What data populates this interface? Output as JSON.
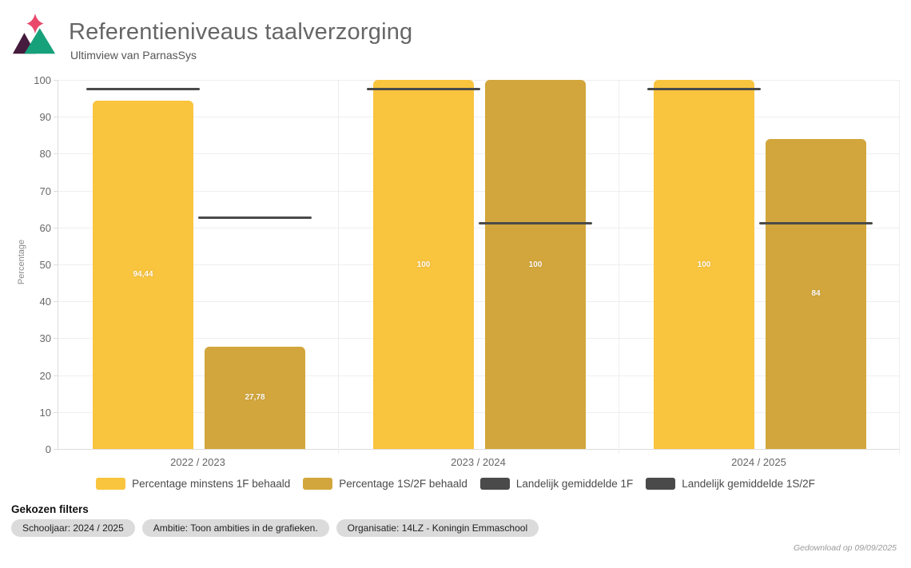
{
  "header": {
    "title": "Referentieniveaus taalverzorging",
    "subtitle": "Ultimview van ParnasSys"
  },
  "logo": {
    "star_color": "#E9486B",
    "left_triangle_color": "#451C3D",
    "right_triangle_color": "#17A17B"
  },
  "chart_data": {
    "type": "bar",
    "title": "Referentieniveaus taalverzorging",
    "xlabel": "",
    "ylabel": "Percentage",
    "ylim": [
      0,
      100
    ],
    "ytick_step": 10,
    "grid": true,
    "legend_position": "bottom",
    "categories": [
      "2022 / 2023",
      "2023 / 2024",
      "2024 / 2025"
    ],
    "series": [
      {
        "name": "Percentage minstens 1F behaald",
        "color": "#F9C43E",
        "values": [
          94.44,
          100,
          100
        ],
        "labels": [
          "94,44",
          "100",
          "100"
        ]
      },
      {
        "name": "Percentage 1S/2F behaald",
        "color": "#D2A63C",
        "values": [
          27.78,
          100,
          84
        ],
        "labels": [
          "27,78",
          "100",
          "84"
        ]
      }
    ],
    "reference_lines": [
      {
        "name": "Landelijk gemiddelde 1F",
        "color": "#4A4A4A",
        "over_series": 0,
        "values": [
          97.4,
          97.5,
          97.5
        ]
      },
      {
        "name": "Landelijk gemiddelde 1S/2F",
        "color": "#4A4A4A",
        "over_series": 1,
        "values": [
          62.5,
          61.0,
          61.0
        ]
      }
    ]
  },
  "legend": [
    {
      "label": "Percentage minstens 1F behaald",
      "color": "#F9C43E",
      "kind": "bar"
    },
    {
      "label": "Percentage 1S/2F behaald",
      "color": "#D2A63C",
      "kind": "bar"
    },
    {
      "label": "Landelijk gemiddelde 1F",
      "color": "#4A4A4A",
      "kind": "line"
    },
    {
      "label": "Landelijk gemiddelde 1S/2F",
      "color": "#4A4A4A",
      "kind": "line"
    }
  ],
  "filters": {
    "heading": "Gekozen filters",
    "pills": [
      "Schooljaar: 2024 / 2025",
      "Ambitie: Toon ambities in de grafieken.",
      "Organisatie: 14LZ - Koningin Emmaschool"
    ]
  },
  "footer": {
    "downloaded": "Gedownload op 09/09/2025"
  }
}
